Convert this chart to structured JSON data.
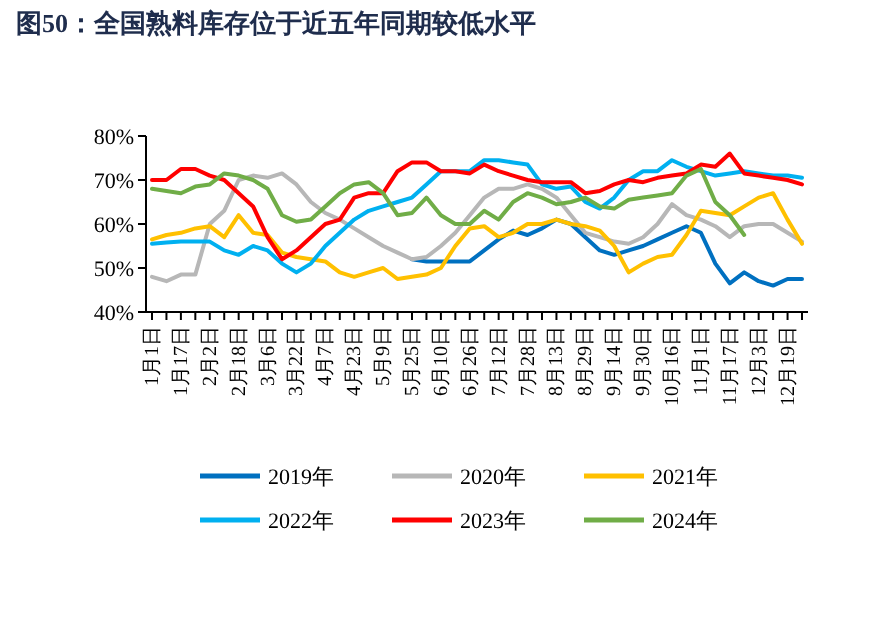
{
  "chart_data": {
    "type": "line",
    "title": "图50：全国熟料库存位于近五年同期较低水平",
    "categories": [
      "1月1日",
      null,
      "1月17日",
      null,
      "2月2日",
      null,
      "2月18日",
      null,
      "3月6日",
      null,
      "3月22日",
      null,
      "4月7日",
      null,
      "4月23日",
      null,
      "5月9日",
      null,
      "5月25日",
      null,
      "6月10日",
      null,
      "6月26日",
      null,
      "7月12日",
      null,
      "7月28日",
      null,
      "8月13日",
      null,
      "8月29日",
      null,
      "9月14日",
      null,
      "9月30日",
      null,
      "10月16日",
      null,
      "11月1日",
      null,
      "11月17日",
      null,
      "12月3日",
      null,
      "12月19日",
      null
    ],
    "ylim": [
      40,
      80
    ],
    "yticks": [
      {
        "value": 40,
        "label": "40%"
      },
      {
        "value": 50,
        "label": "50%"
      },
      {
        "value": 60,
        "label": "60%"
      },
      {
        "value": 70,
        "label": "70%"
      },
      {
        "value": 80,
        "label": "80%"
      }
    ],
    "grid": false,
    "legend": "bottom",
    "marker": "none",
    "line_style": "solid",
    "series": [
      {
        "name": "2019年",
        "color": "#0070c0",
        "values": [
          null,
          null,
          null,
          null,
          null,
          null,
          null,
          null,
          null,
          null,
          null,
          null,
          null,
          null,
          null,
          null,
          null,
          null,
          52,
          51.5,
          51.5,
          51.5,
          51.5,
          54,
          56.5,
          58.5,
          57.5,
          59,
          61,
          60,
          57,
          54,
          53,
          54,
          55,
          56.5,
          58,
          59.5,
          58,
          51,
          46.5,
          49,
          47,
          46,
          47.5,
          47.5
        ]
      },
      {
        "name": "2020年",
        "color": "#b7b7b7",
        "values": [
          48,
          47,
          48.5,
          48.5,
          60,
          63,
          70,
          71,
          70.5,
          71.5,
          69,
          65,
          62.5,
          61,
          59,
          57,
          55,
          53.5,
          52,
          52.5,
          55,
          58,
          62,
          66,
          68,
          68,
          69,
          68,
          66,
          62,
          58,
          57,
          56,
          55.5,
          57,
          60,
          64.5,
          62,
          61,
          59.5,
          57,
          59.5,
          60,
          60,
          58,
          56
        ]
      },
      {
        "name": "2021年",
        "color": "#ffc000",
        "values": [
          56.5,
          57.5,
          58,
          59,
          59.5,
          57,
          62,
          58,
          57.5,
          53.5,
          52.5,
          52,
          51.5,
          49,
          48,
          49,
          50,
          47.5,
          48,
          48.5,
          50,
          55,
          59,
          59.5,
          57,
          58,
          60,
          60,
          61,
          60,
          59.5,
          58.5,
          55,
          49,
          51,
          52.5,
          53,
          57.5,
          63,
          62.5,
          62,
          64,
          66,
          67,
          61,
          55.5
        ]
      },
      {
        "name": "2022年",
        "color": "#00b0f0",
        "values": [
          55.5,
          55.8,
          56,
          56,
          56,
          54,
          53,
          55,
          54,
          51,
          49,
          51,
          55,
          58,
          61,
          63,
          64,
          65,
          66,
          69,
          72,
          72,
          72,
          74.5,
          74.5,
          74,
          73.5,
          69,
          68,
          68.5,
          65,
          63.5,
          66,
          70,
          72,
          72,
          74.5,
          73,
          72,
          71,
          71.5,
          72,
          71.5,
          71,
          71,
          70.5
        ]
      },
      {
        "name": "2023年",
        "color": "#ff0000",
        "values": [
          70,
          70,
          72.5,
          72.5,
          71,
          70,
          67,
          64,
          57,
          52,
          54,
          57,
          60,
          61,
          66,
          67,
          67,
          72,
          74,
          74,
          72,
          72,
          71.5,
          73.5,
          72,
          71,
          70,
          69.5,
          69.5,
          69.5,
          67,
          67.5,
          69,
          70,
          69.5,
          70.5,
          71,
          71.5,
          73.5,
          73,
          76,
          71.5,
          71,
          70.5,
          70,
          69
        ]
      },
      {
        "name": "2024年",
        "color": "#70ad47",
        "values": [
          68,
          67.5,
          67,
          68.5,
          69,
          71.5,
          71,
          70,
          68,
          62,
          60.5,
          61,
          64,
          67,
          69,
          69.5,
          67,
          62,
          62.5,
          66,
          62,
          60,
          60,
          63,
          61,
          65,
          67,
          66,
          64.5,
          65,
          66,
          64,
          63.5,
          65.5,
          66,
          66.5,
          67,
          71,
          72.5,
          65,
          62,
          57.5,
          null,
          null,
          null,
          null
        ]
      }
    ]
  }
}
